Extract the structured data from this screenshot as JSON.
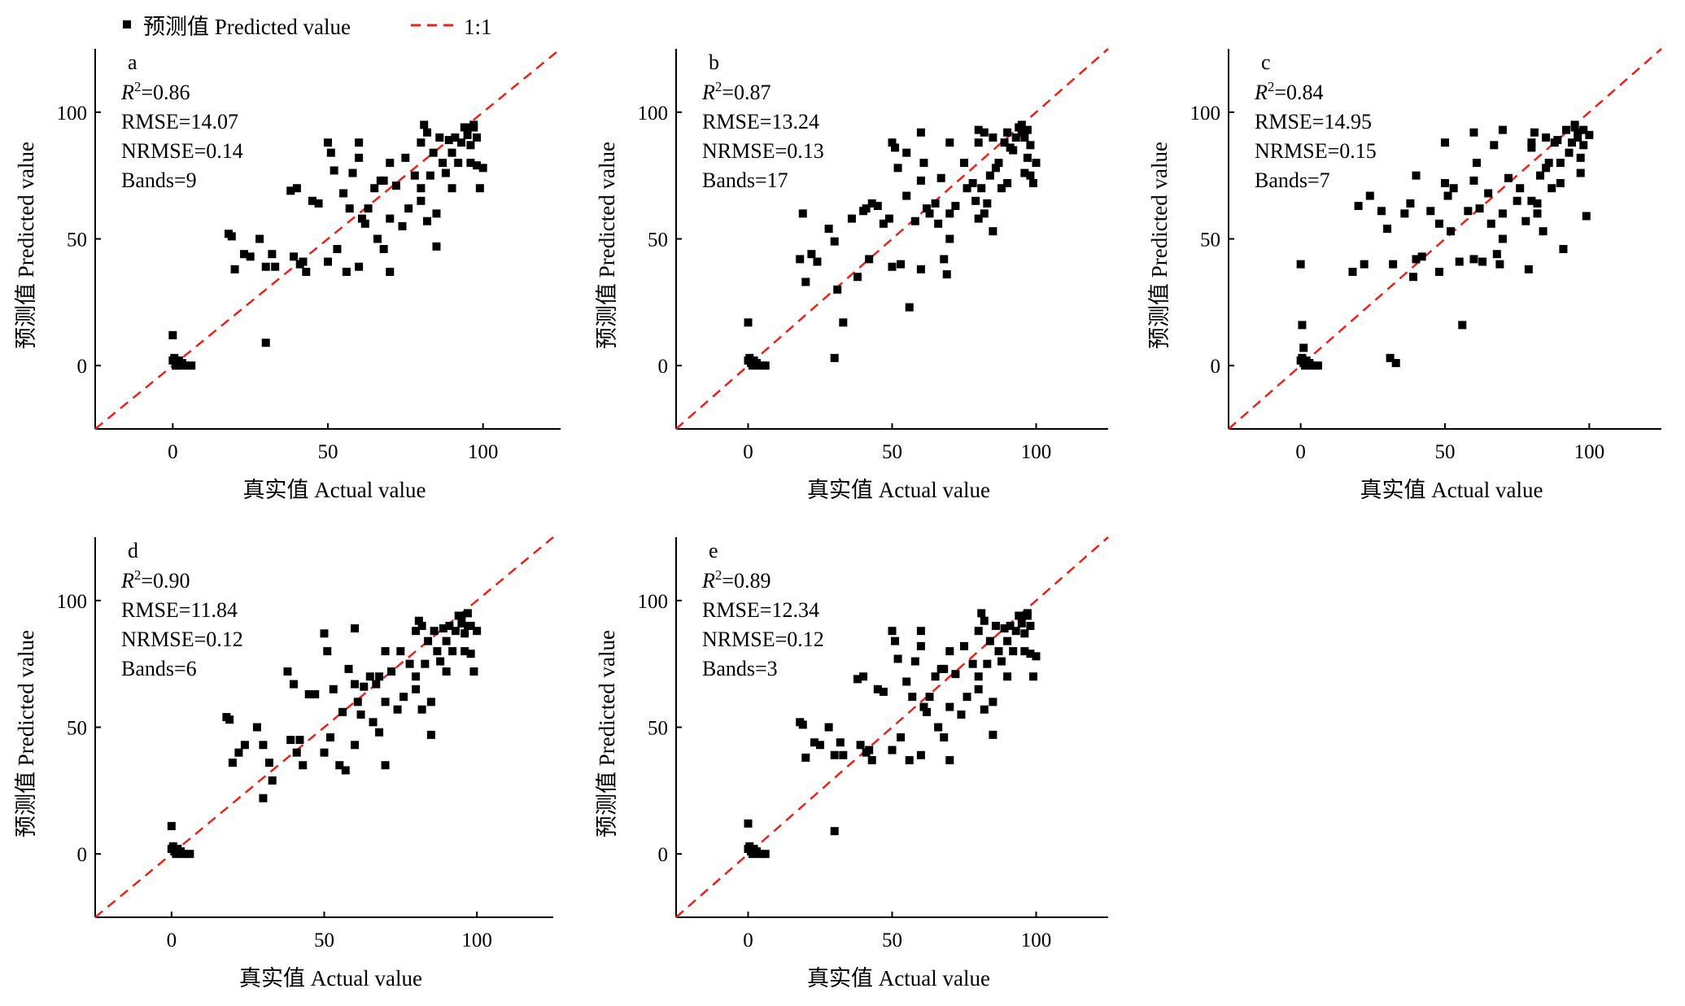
{
  "legend": {
    "predicted_label": "预测值 Predicted value",
    "line_label": "1:1",
    "line_color": "#e8231c",
    "marker_color": "#000000"
  },
  "chart_data": [
    {
      "type": "scatter",
      "panel_label": "a",
      "xlabel": "真实值 Actual value",
      "ylabel": "预测值 Predicted value",
      "xlim": [
        -25,
        125
      ],
      "ylim": [
        -25,
        125
      ],
      "xticks": [
        0,
        50,
        100
      ],
      "yticks": [
        0,
        50,
        100
      ],
      "stats": {
        "r2_prefix": "R",
        "r2_sup": "2",
        "r2_value": "=0.86",
        "rmse": "RMSE=14.07",
        "nrmse": "NRMSE=0.14",
        "bands": "Bands=9"
      },
      "x": [
        0,
        0.5,
        1,
        1.5,
        2,
        3,
        4,
        6,
        0,
        1,
        2,
        18,
        19,
        20,
        23,
        25,
        28,
        30,
        30,
        32,
        33,
        38,
        39,
        40,
        41,
        42,
        43,
        45,
        47,
        50,
        50,
        51,
        52,
        53,
        55,
        56,
        57,
        58,
        60,
        60,
        60,
        61,
        62,
        63,
        65,
        66,
        67,
        68,
        68,
        70,
        70,
        70,
        72,
        74,
        75,
        76,
        78,
        80,
        80,
        80,
        81,
        82,
        82,
        83,
        84,
        85,
        85,
        86,
        87,
        88,
        89,
        90,
        90,
        91,
        92,
        93,
        94,
        95,
        95,
        96,
        96,
        97,
        97,
        98,
        98,
        99,
        100
      ],
      "y": [
        2,
        3,
        1,
        0,
        2,
        1,
        0,
        0,
        12,
        0,
        1,
        52,
        51,
        38,
        44,
        43,
        50,
        39,
        9,
        44,
        39,
        69,
        43,
        70,
        40,
        41,
        37,
        65,
        64,
        41,
        88,
        84,
        77,
        46,
        68,
        37,
        62,
        76,
        88,
        39,
        82,
        58,
        56,
        62,
        70,
        50,
        73,
        46,
        73,
        37,
        80,
        58,
        71,
        55,
        82,
        62,
        75,
        70,
        88,
        65,
        95,
        57,
        92,
        75,
        84,
        60,
        47,
        90,
        80,
        76,
        89,
        84,
        70,
        90,
        80,
        88,
        94,
        94,
        91,
        87,
        80,
        95,
        94,
        90,
        79,
        70,
        78
      ]
    },
    {
      "type": "scatter",
      "panel_label": "b",
      "xlabel": "真实值 Actual value",
      "ylabel": "预测值 Predicted value",
      "xlim": [
        -25,
        125
      ],
      "ylim": [
        -25,
        125
      ],
      "xticks": [
        0,
        50,
        100
      ],
      "yticks": [
        0,
        50,
        100
      ],
      "stats": {
        "r2_prefix": "R",
        "r2_sup": "2",
        "r2_value": "=0.87",
        "rmse": "RMSE=13.24",
        "nrmse": "NRMSE=0.13",
        "bands": "Bands=17"
      },
      "x": [
        0,
        0.5,
        1,
        1.5,
        2,
        3,
        4,
        6,
        0,
        18,
        19,
        20,
        22,
        24,
        28,
        30,
        30,
        31,
        33,
        36,
        38,
        40,
        41,
        42,
        43,
        45,
        47,
        49,
        50,
        50,
        51,
        52,
        53,
        55,
        55,
        56,
        58,
        60,
        60,
        60,
        61,
        62,
        63,
        65,
        66,
        67,
        68,
        69,
        70,
        70,
        70,
        72,
        75,
        76,
        78,
        79,
        80,
        80,
        80,
        81,
        82,
        82,
        83,
        84,
        85,
        85,
        86,
        87,
        88,
        89,
        90,
        90,
        91,
        92,
        93,
        94,
        95,
        95,
        96,
        96,
        97,
        97,
        98,
        98,
        99,
        100
      ],
      "y": [
        2,
        3,
        1,
        0,
        2,
        1,
        0,
        0,
        17,
        42,
        60,
        33,
        44,
        41,
        54,
        3,
        49,
        30,
        17,
        58,
        35,
        61,
        62,
        42,
        64,
        63,
        56,
        58,
        39,
        88,
        86,
        78,
        40,
        84,
        67,
        23,
        57,
        38,
        73,
        92,
        80,
        62,
        60,
        64,
        56,
        74,
        42,
        36,
        60,
        50,
        88,
        63,
        80,
        70,
        72,
        65,
        88,
        58,
        93,
        70,
        92,
        60,
        64,
        75,
        53,
        90,
        78,
        80,
        70,
        88,
        92,
        72,
        86,
        85,
        90,
        94,
        95,
        92,
        90,
        76,
        82,
        93,
        87,
        75,
        72,
        80
      ]
    },
    {
      "type": "scatter",
      "panel_label": "c",
      "xlabel": "真实值 Actual value",
      "ylabel": "预测值 Predicted value",
      "xlim": [
        -25,
        125
      ],
      "ylim": [
        -25,
        125
      ],
      "xticks": [
        0,
        50,
        100
      ],
      "yticks": [
        0,
        50,
        100
      ],
      "stats": {
        "r2_prefix": "R",
        "r2_sup": "2",
        "r2_value": "=0.84",
        "rmse": "RMSE=14.95",
        "nrmse": "NRMSE=0.15",
        "bands": "Bands=7"
      },
      "x": [
        0,
        0.5,
        1,
        1.5,
        2,
        3,
        4,
        6,
        0,
        0.5,
        1,
        18,
        20,
        22,
        24,
        28,
        30,
        31,
        32,
        33,
        36,
        38,
        39,
        40,
        40,
        42,
        45,
        48,
        48,
        50,
        50,
        51,
        52,
        53,
        55,
        56,
        58,
        60,
        60,
        60,
        61,
        62,
        63,
        65,
        66,
        67,
        68,
        69,
        70,
        70,
        70,
        72,
        75,
        76,
        78,
        79,
        80,
        80,
        80,
        81,
        82,
        82,
        83,
        84,
        85,
        85,
        86,
        87,
        88,
        89,
        90,
        90,
        91,
        92,
        93,
        94,
        95,
        95,
        96,
        96,
        97,
        97,
        98,
        98,
        99,
        100
      ],
      "y": [
        2,
        3,
        1,
        0,
        2,
        1,
        0,
        0,
        40,
        16,
        7,
        37,
        63,
        40,
        67,
        61,
        54,
        3,
        40,
        1,
        60,
        64,
        35,
        42,
        75,
        43,
        61,
        56,
        37,
        72,
        88,
        67,
        53,
        70,
        41,
        16,
        61,
        42,
        73,
        92,
        80,
        62,
        41,
        68,
        56,
        87,
        44,
        40,
        60,
        50,
        93,
        74,
        65,
        70,
        57,
        38,
        88,
        86,
        65,
        92,
        60,
        64,
        75,
        53,
        90,
        78,
        80,
        70,
        88,
        89,
        80,
        72,
        46,
        93,
        84,
        88,
        94,
        95,
        92,
        90,
        76,
        82,
        93,
        87,
        59,
        91
      ]
    },
    {
      "type": "scatter",
      "panel_label": "d",
      "xlabel": "真实值 Actual value",
      "ylabel": "预测值 Predicted value",
      "xlim": [
        -25,
        125
      ],
      "ylim": [
        -25,
        125
      ],
      "xticks": [
        0,
        50,
        100
      ],
      "yticks": [
        0,
        50,
        100
      ],
      "stats": {
        "r2_prefix": "R",
        "r2_sup": "2",
        "r2_value": "=0.90",
        "rmse": "RMSE=11.84",
        "nrmse": "NRMSE=0.12",
        "bands": "Bands=6"
      },
      "x": [
        0,
        0.5,
        1,
        1.5,
        2,
        3,
        4,
        6,
        0,
        18,
        19,
        20,
        22,
        24,
        28,
        30,
        30,
        32,
        33,
        38,
        39,
        40,
        41,
        42,
        43,
        45,
        47,
        50,
        50,
        51,
        52,
        53,
        55,
        56,
        57,
        58,
        60,
        60,
        60,
        61,
        62,
        63,
        65,
        66,
        67,
        68,
        68,
        70,
        70,
        70,
        72,
        74,
        75,
        76,
        78,
        80,
        80,
        80,
        81,
        82,
        82,
        83,
        84,
        85,
        85,
        86,
        87,
        88,
        89,
        90,
        90,
        91,
        92,
        93,
        94,
        95,
        95,
        96,
        96,
        97,
        97,
        98,
        98,
        99,
        100
      ],
      "y": [
        2,
        3,
        1,
        0,
        2,
        1,
        0,
        0,
        11,
        54,
        53,
        36,
        40,
        43,
        50,
        22,
        43,
        36,
        29,
        72,
        45,
        67,
        40,
        45,
        35,
        63,
        63,
        40,
        87,
        80,
        46,
        65,
        35,
        56,
        33,
        73,
        67,
        43,
        89,
        60,
        55,
        66,
        70,
        52,
        67,
        48,
        70,
        35,
        80,
        60,
        72,
        57,
        80,
        62,
        75,
        70,
        88,
        65,
        92,
        57,
        90,
        75,
        84,
        60,
        47,
        88,
        80,
        76,
        89,
        84,
        72,
        90,
        80,
        88,
        94,
        94,
        91,
        87,
        80,
        95,
        90,
        90,
        79,
        72,
        88
      ]
    },
    {
      "type": "scatter",
      "panel_label": "e",
      "xlabel": "真实值 Actual value",
      "ylabel": "预测值 Predicted value",
      "xlim": [
        -25,
        125
      ],
      "ylim": [
        -25,
        125
      ],
      "xticks": [
        0,
        50,
        100
      ],
      "yticks": [
        0,
        50,
        100
      ],
      "stats": {
        "r2_prefix": "R",
        "r2_sup": "2",
        "r2_value": "=0.89",
        "rmse": "RMSE=12.34",
        "nrmse": "NRMSE=0.12",
        "bands": "Bands=3"
      },
      "x": [
        0,
        0.5,
        1,
        1.5,
        2,
        3,
        4,
        6,
        0,
        18,
        19,
        20,
        23,
        25,
        28,
        30,
        30,
        32,
        33,
        38,
        39,
        40,
        41,
        42,
        43,
        45,
        47,
        50,
        50,
        51,
        52,
        53,
        55,
        56,
        57,
        58,
        60,
        60,
        60,
        61,
        62,
        63,
        65,
        66,
        67,
        68,
        68,
        70,
        70,
        70,
        72,
        74,
        75,
        76,
        78,
        80,
        80,
        80,
        81,
        82,
        82,
        83,
        84,
        85,
        85,
        86,
        87,
        88,
        89,
        90,
        90,
        91,
        92,
        93,
        94,
        95,
        95,
        96,
        96,
        97,
        97,
        98,
        98,
        99,
        100
      ],
      "y": [
        2,
        3,
        1,
        0,
        2,
        1,
        0,
        0,
        12,
        52,
        51,
        38,
        44,
        43,
        50,
        39,
        9,
        44,
        39,
        69,
        43,
        70,
        40,
        41,
        37,
        65,
        64,
        41,
        88,
        84,
        77,
        46,
        68,
        37,
        62,
        76,
        88,
        39,
        82,
        58,
        56,
        62,
        70,
        50,
        73,
        46,
        73,
        37,
        80,
        58,
        71,
        55,
        82,
        62,
        75,
        70,
        88,
        65,
        95,
        57,
        92,
        75,
        84,
        60,
        47,
        90,
        80,
        76,
        89,
        84,
        70,
        90,
        80,
        88,
        94,
        94,
        91,
        87,
        80,
        95,
        94,
        90,
        79,
        70,
        78
      ]
    }
  ]
}
